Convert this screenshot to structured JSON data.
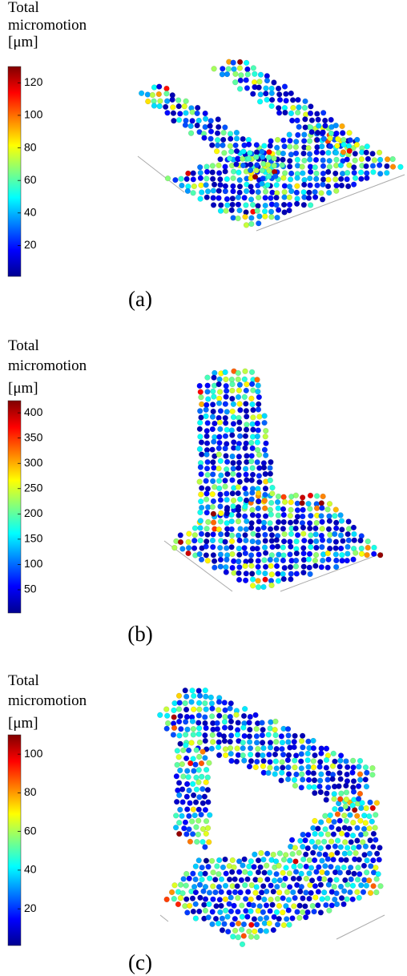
{
  "panels": [
    {
      "colorbar": {
        "title": [
          "Total",
          "micromotion",
          "[μm]"
        ],
        "ticks": [
          20,
          40,
          60,
          80,
          100,
          120
        ],
        "lim": [
          1,
          130
        ]
      },
      "label": "(a)"
    },
    {
      "colorbar": {
        "title": [
          "Total",
          "micromotion",
          "[μm]"
        ],
        "ticks": [
          50,
          100,
          150,
          200,
          250,
          300,
          350,
          400
        ],
        "lim": [
          4,
          424
        ]
      },
      "label": "(b)"
    },
    {
      "colorbar": {
        "title": [
          "Total",
          "micromotion",
          "[μm]"
        ],
        "ticks": [
          20,
          40,
          60,
          80,
          100
        ],
        "lim": [
          1,
          110
        ]
      },
      "label": "(c)"
    }
  ]
}
